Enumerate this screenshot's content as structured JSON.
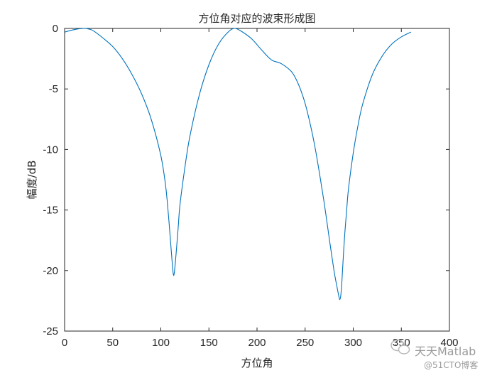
{
  "chart_data": {
    "type": "line",
    "title": "方位角对应的波束形成图",
    "xlabel": "方位角",
    "ylabel": "幅度/dB",
    "xlim": [
      0,
      400
    ],
    "ylim": [
      -25,
      0
    ],
    "xticks": [
      0,
      50,
      100,
      150,
      200,
      250,
      300,
      350,
      400
    ],
    "yticks": [
      0,
      -5,
      -10,
      -15,
      -20,
      -25
    ],
    "grid": false,
    "series": [
      {
        "color": "#0072BD",
        "x": [
          0,
          10,
          20,
          25,
          30,
          40,
          50,
          60,
          70,
          80,
          90,
          100,
          105,
          108,
          110,
          112,
          113,
          114,
          116,
          118,
          120,
          125,
          130,
          140,
          150,
          160,
          170,
          177,
          185,
          195,
          205,
          215,
          225,
          235,
          240,
          245,
          250,
          255,
          260,
          265,
          270,
          275,
          280,
          283,
          285,
          286,
          287,
          288,
          289,
          291,
          293,
          295,
          300,
          305,
          310,
          320,
          330,
          340,
          350,
          360
        ],
        "y": [
          -0.3,
          -0.1,
          0,
          -0.05,
          -0.2,
          -0.8,
          -1.5,
          -2.5,
          -3.8,
          -5.4,
          -7.5,
          -10.5,
          -13,
          -15.5,
          -17.5,
          -19.5,
          -20.3,
          -20.2,
          -18.5,
          -16.5,
          -14.5,
          -11.5,
          -9.0,
          -5.5,
          -3.0,
          -1.3,
          -0.3,
          0,
          -0.3,
          -0.9,
          -1.8,
          -2.6,
          -2.9,
          -3.5,
          -4.1,
          -5.0,
          -6.2,
          -7.8,
          -9.7,
          -12.0,
          -14.5,
          -17.3,
          -20.0,
          -21.3,
          -22.1,
          -22.4,
          -22.1,
          -21.2,
          -19.8,
          -17.2,
          -15.2,
          -13.3,
          -10.3,
          -8.0,
          -6.2,
          -3.8,
          -2.3,
          -1.3,
          -0.7,
          -0.3
        ]
      }
    ]
  },
  "watermark": {
    "main": "天天Matlab",
    "sub": "@51CTO博客"
  }
}
